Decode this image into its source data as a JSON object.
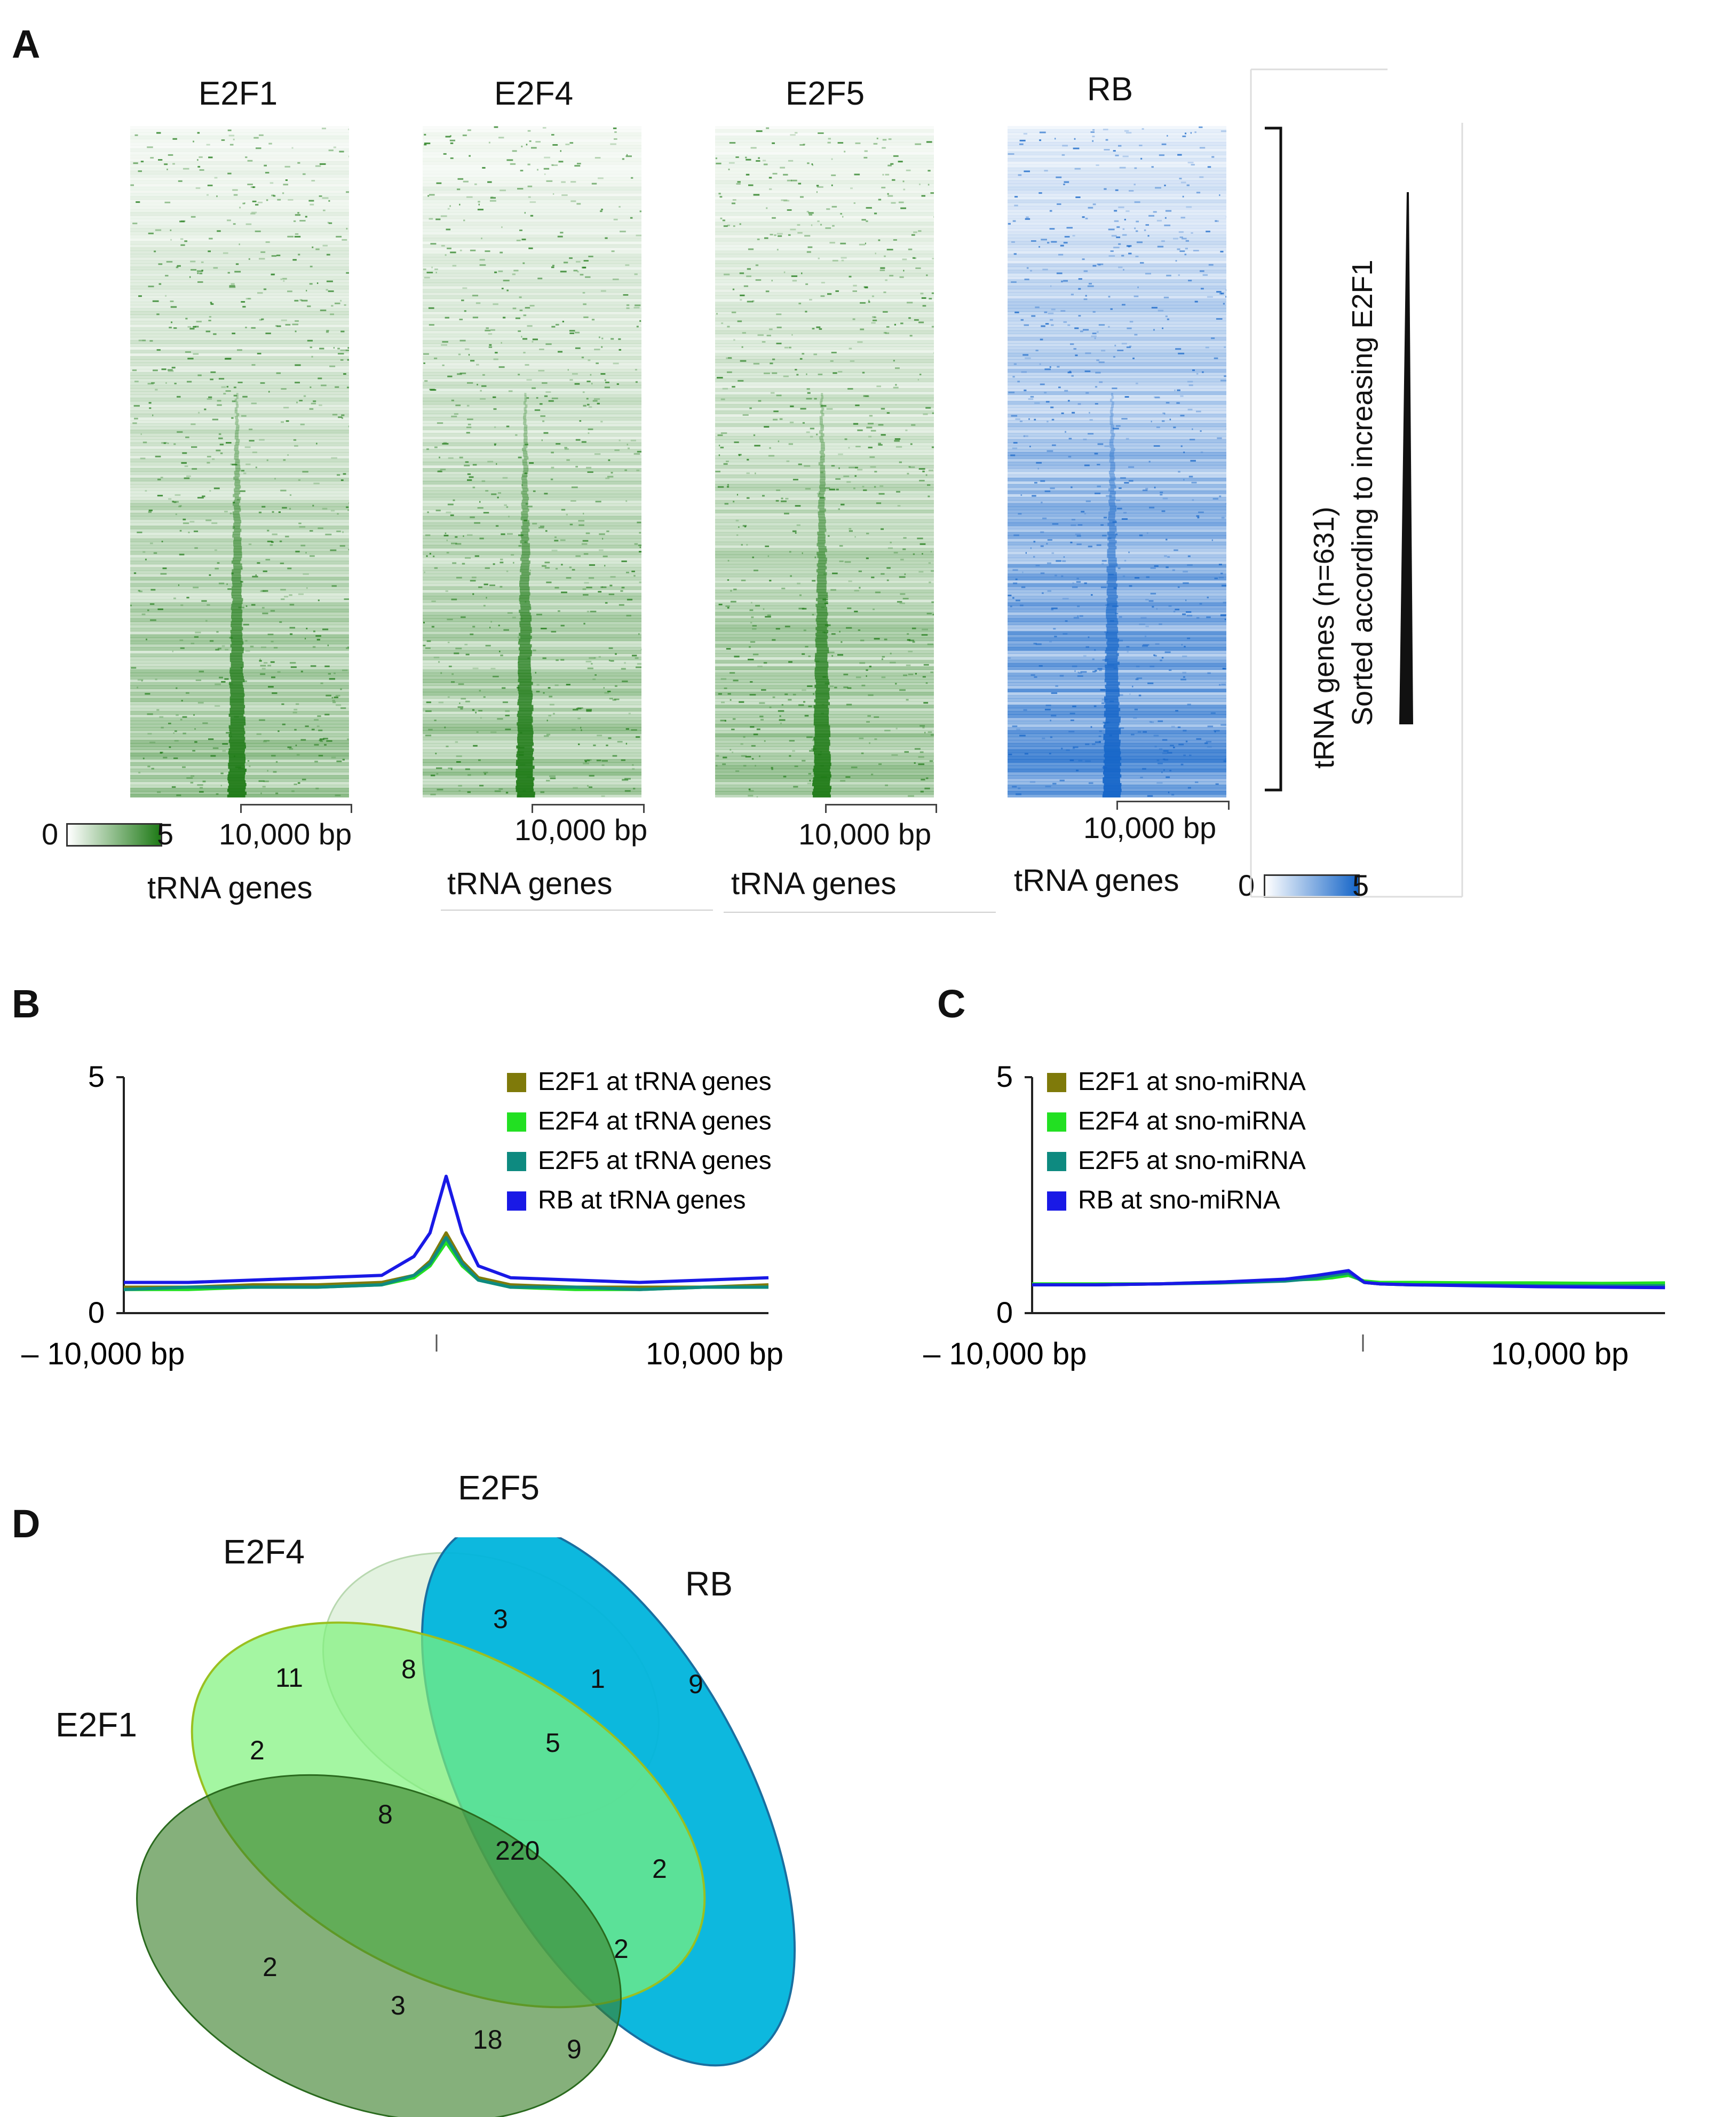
{
  "panels": {
    "A": "A",
    "B": "B",
    "C": "C",
    "D": "D"
  },
  "heatmaps": {
    "titles": [
      "E2F1",
      "E2F4",
      "E2F5",
      "RB"
    ],
    "bp_label": "10,000 bp",
    "xlabel": "tRNA genes",
    "side_label_line1": "tRNA genes (n=631)",
    "side_label_line2": "Sorted according to increasing E2F1",
    "green_scale": {
      "min": "0",
      "max": "5",
      "color": "#1e7a16"
    },
    "blue_scale": {
      "min": "0",
      "max": "5",
      "color": "#1565c8"
    }
  },
  "chart_data": [
    {
      "type": "line",
      "panel": "B",
      "x": [
        -10000,
        -8000,
        -6000,
        -4000,
        -2000,
        -1000,
        -500,
        0,
        500,
        1000,
        2000,
        4000,
        6000,
        8000,
        10000
      ],
      "xticklabels": [
        "– 10,000 bp",
        "10,000 bp"
      ],
      "ylim": [
        0,
        5
      ],
      "yticklabels": [
        "0",
        "5"
      ],
      "series": [
        {
          "name": "E2F1 at tRNA genes",
          "color": "#7f7a0a",
          "values": [
            0.55,
            0.55,
            0.6,
            0.6,
            0.65,
            0.8,
            1.1,
            1.7,
            1.1,
            0.75,
            0.6,
            0.55,
            0.55,
            0.55,
            0.6
          ]
        },
        {
          "name": "E2F4 at tRNA genes",
          "color": "#22e022",
          "values": [
            0.5,
            0.5,
            0.55,
            0.55,
            0.6,
            0.75,
            1.0,
            1.5,
            1.0,
            0.7,
            0.55,
            0.5,
            0.5,
            0.55,
            0.55
          ]
        },
        {
          "name": "E2F5 at tRNA genes",
          "color": "#0e8a80",
          "values": [
            0.5,
            0.55,
            0.55,
            0.55,
            0.6,
            0.8,
            1.05,
            1.6,
            1.05,
            0.7,
            0.55,
            0.55,
            0.5,
            0.55,
            0.55
          ]
        },
        {
          "name": "RB at tRNA genes",
          "color": "#1919e6",
          "values": [
            0.65,
            0.65,
            0.7,
            0.75,
            0.8,
            1.2,
            1.7,
            2.9,
            1.7,
            1.0,
            0.75,
            0.7,
            0.65,
            0.7,
            0.75
          ]
        }
      ]
    },
    {
      "type": "line",
      "panel": "C",
      "x": [
        -10000,
        -8000,
        -6000,
        -4000,
        -2000,
        -1000,
        -500,
        0,
        500,
        1000,
        2000,
        4000,
        6000,
        8000,
        10000
      ],
      "xticklabels": [
        "– 10,000 bp",
        "10,000 bp"
      ],
      "ylim": [
        0,
        5
      ],
      "yticklabels": [
        "0",
        "5"
      ],
      "series": [
        {
          "name": "E2F1 at sno-miRNA",
          "color": "#7f7a0a",
          "values": [
            0.6,
            0.6,
            0.62,
            0.65,
            0.7,
            0.75,
            0.8,
            0.85,
            0.65,
            0.62,
            0.6,
            0.6,
            0.58,
            0.58,
            0.58
          ]
        },
        {
          "name": "E2F4 at sno-miRNA",
          "color": "#22e022",
          "values": [
            0.62,
            0.62,
            0.62,
            0.66,
            0.7,
            0.72,
            0.75,
            0.8,
            0.68,
            0.65,
            0.65,
            0.64,
            0.64,
            0.63,
            0.64
          ]
        },
        {
          "name": "E2F5 at sno-miRNA",
          "color": "#0e8a80",
          "values": [
            0.6,
            0.6,
            0.62,
            0.64,
            0.68,
            0.74,
            0.8,
            0.85,
            0.65,
            0.62,
            0.6,
            0.6,
            0.58,
            0.58,
            0.58
          ]
        },
        {
          "name": "RB at sno-miRNA",
          "color": "#1919e6",
          "values": [
            0.6,
            0.6,
            0.62,
            0.66,
            0.72,
            0.8,
            0.85,
            0.9,
            0.65,
            0.62,
            0.6,
            0.58,
            0.56,
            0.55,
            0.54
          ]
        }
      ]
    }
  ],
  "venn": {
    "sets": [
      "E2F1",
      "E2F4",
      "E2F5",
      "RB"
    ],
    "colors": {
      "E2F1": "#4a8a3a",
      "E2F4": "#7ef27a",
      "E2F5": "#d6ecd2",
      "RB": "#00b4dc"
    },
    "counts": [
      "3",
      "11",
      "8",
      "1",
      "9",
      "2",
      "5",
      "8",
      "220",
      "2",
      "2",
      "2",
      "3",
      "18",
      "9"
    ]
  }
}
